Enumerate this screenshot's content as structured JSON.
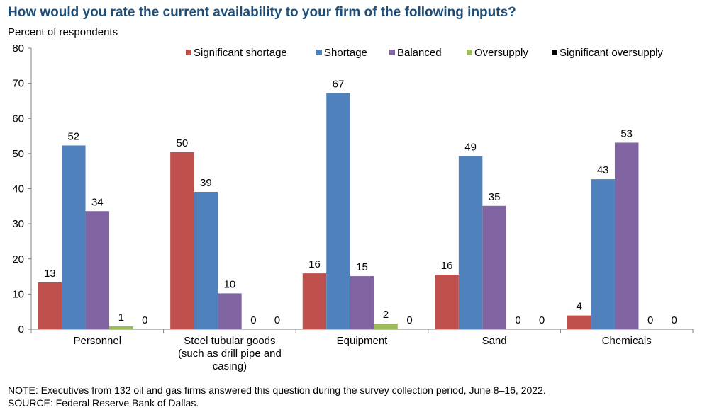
{
  "chart_data": {
    "type": "bar",
    "title": "How would you rate the current availability to your firm of the following inputs?",
    "ylabel": "Percent of respondents",
    "xlabel": "",
    "ylim": [
      0,
      80
    ],
    "yticks": [
      0,
      10,
      20,
      30,
      40,
      50,
      60,
      70,
      80
    ],
    "categories": [
      "Personnel",
      "Steel tubular goods (such as drill pipe and casing)",
      "Equipment",
      "Sand",
      "Chemicals"
    ],
    "category_label_lines": [
      [
        "Personnel"
      ],
      [
        "Steel tubular goods",
        "(such as drill pipe and",
        "casing)"
      ],
      [
        "Equipment"
      ],
      [
        "Sand"
      ],
      [
        "Chemicals"
      ]
    ],
    "series": [
      {
        "name": "Significant shortage",
        "color": "#c0504d",
        "values": [
          13.3,
          50.4,
          15.9,
          15.5,
          3.9
        ]
      },
      {
        "name": "Shortage",
        "color": "#4f81bd",
        "values": [
          52.3,
          39.1,
          67.2,
          49.3,
          42.7
        ]
      },
      {
        "name": "Balanced",
        "color": "#8064a2",
        "values": [
          33.6,
          10.2,
          15.1,
          35.1,
          53.1
        ]
      },
      {
        "name": "Oversupply",
        "color": "#9bbb59",
        "values": [
          0.8,
          0,
          1.6,
          0,
          0
        ]
      },
      {
        "name": "Significant oversupply",
        "color": "#000000",
        "values": [
          0,
          0,
          0,
          0,
          0
        ]
      }
    ],
    "data_labels": [
      [
        "13",
        "50",
        "16",
        "16",
        "4"
      ],
      [
        "52",
        "39",
        "67",
        "49",
        "43"
      ],
      [
        "34",
        "10",
        "15",
        "35",
        "53"
      ],
      [
        "1",
        "0",
        "2",
        "0",
        "0"
      ],
      [
        "0",
        "0",
        "0",
        "0",
        "0"
      ]
    ],
    "legend_position": "top-right",
    "grid": false
  },
  "notes": {
    "note": "NOTE:  Executives from 132 oil and gas firms answered this question during the survey collection period, June 8–16, 2022.",
    "source": "SOURCE:  Federal Reserve Bank of Dallas."
  }
}
